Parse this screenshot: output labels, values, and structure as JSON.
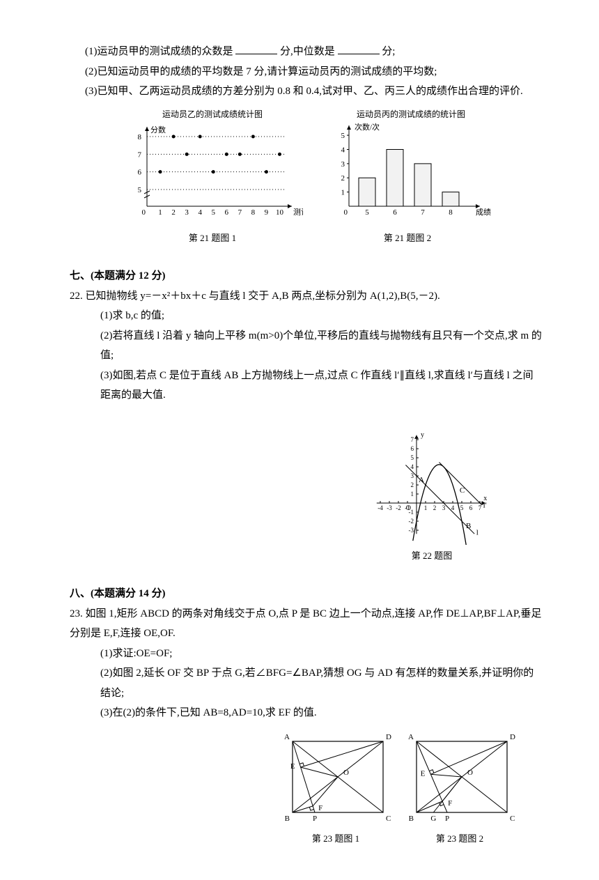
{
  "q21": {
    "p1_a": "(1)运动员甲的测试成绩的众数是",
    "p1_b": "分,中位数是",
    "p1_c": "分;",
    "p2": "(2)已知运动员甲的成绩的平均数是 7 分,请计算运动员丙的测试成绩的平均数;",
    "p3": "(3)已知甲、乙两运动员成绩的方差分别为 0.8 和 0.4,试对甲、乙、丙三人的成绩作出合理的评价.",
    "chart1": {
      "title": "运动员乙的测试成绩统计图",
      "ylab": "分数",
      "xlab": "测试序号",
      "yticks": [
        5,
        6,
        7,
        8
      ],
      "xticks": [
        0,
        1,
        2,
        3,
        4,
        5,
        6,
        7,
        8,
        9,
        10
      ],
      "points": [
        {
          "x": 1,
          "y": 6
        },
        {
          "x": 2,
          "y": 8
        },
        {
          "x": 3,
          "y": 7
        },
        {
          "x": 4,
          "y": 8
        },
        {
          "x": 5,
          "y": 6
        },
        {
          "x": 6,
          "y": 7
        },
        {
          "x": 7,
          "y": 7
        },
        {
          "x": 8,
          "y": 8
        },
        {
          "x": 9,
          "y": 6
        },
        {
          "x": 10,
          "y": 7
        }
      ],
      "caption": "第 21 题图 1"
    },
    "chart2": {
      "title": "运动员丙的测试成绩的统计图",
      "ylab": "次数/次",
      "xlab": "成绩/分",
      "yticks": [
        0,
        1,
        2,
        3,
        4,
        5
      ],
      "bars": [
        {
          "x": 5,
          "h": 2
        },
        {
          "x": 6,
          "h": 4
        },
        {
          "x": 7,
          "h": 3
        },
        {
          "x": 8,
          "h": 1
        }
      ],
      "caption": "第 21 题图 2"
    }
  },
  "sec7": "七、(本题满分 12 分)",
  "q22": {
    "stem": "22. 已知抛物线 y=－x²＋bx＋c 与直线 l 交于 A,B 两点,坐标分别为 A(1,2),B(5,－2).",
    "p1": "(1)求 b,c 的值;",
    "p2": "(2)若将直线 l 沿着 y 轴向上平移 m(m>0)个单位,平移后的直线与抛物线有且只有一个交点,求 m 的值;",
    "p3": "(3)如图,若点 C 是位于直线 AB 上方抛物线上一点,过点 C 作直线 l′∥直线 l,求直线 l′与直线 l 之间距离的最大值.",
    "caption": "第 22 题图",
    "graph": {
      "yticks": [
        1,
        2,
        3,
        4,
        5,
        6,
        7
      ],
      "ynTicks": [
        -1,
        -2,
        -3
      ],
      "xticks": [
        1,
        2,
        3,
        4,
        5,
        6,
        7
      ],
      "xnTicks": [
        -1,
        -2,
        -3,
        -4
      ],
      "labels": {
        "O": "O",
        "A": "A",
        "B": "B",
        "C": "C",
        "l": "l",
        "lp": "l′",
        "x": "x",
        "y": "y"
      }
    }
  },
  "sec8": "八、(本题满分 14 分)",
  "q23": {
    "stem": "23. 如图 1,矩形 ABCD 的两条对角线交于点 O,点 P 是 BC 边上一个动点,连接 AP,作 DE⊥AP,BF⊥AP,垂足分别是 E,F,连接 OE,OF.",
    "p1": "(1)求证:OE=OF;",
    "p2": "(2)如图 2,延长 OF 交 BP 于点 G,若∠BFG=∠BAP,猜想 OG 与 AD 有怎样的数量关系,并证明你的结论;",
    "p3": "(3)在(2)的条件下,已知 AB=8,AD=10,求 EF 的值.",
    "cap1": "第 23 题图 1",
    "cap2": "第 23 题图 2",
    "labels": {
      "A": "A",
      "B": "B",
      "C": "C",
      "D": "D",
      "E": "E",
      "F": "F",
      "O": "O",
      "P": "P",
      "G": "G"
    }
  }
}
